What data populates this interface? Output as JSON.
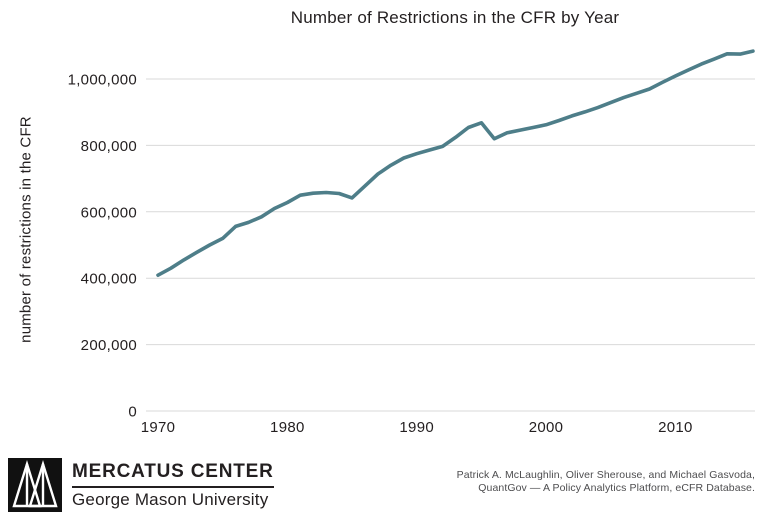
{
  "title": "Number of Restrictions in the CFR by Year",
  "chart_data": {
    "type": "line",
    "title": "Number of Restrictions in the CFR by Year",
    "xlabel": "",
    "ylabel": "number of restrictions in the CFR",
    "x": [
      1970,
      1971,
      1972,
      1973,
      1974,
      1975,
      1976,
      1977,
      1978,
      1979,
      1980,
      1981,
      1982,
      1983,
      1984,
      1985,
      1986,
      1987,
      1988,
      1989,
      1990,
      1991,
      1992,
      1993,
      1994,
      1995,
      1996,
      1997,
      1998,
      1999,
      2000,
      2001,
      2002,
      2003,
      2004,
      2005,
      2006,
      2007,
      2008,
      2009,
      2010,
      2011,
      2012,
      2013,
      2014,
      2015,
      2016
    ],
    "values": [
      409000,
      430000,
      455000,
      478000,
      500000,
      520000,
      556000,
      568000,
      585000,
      610000,
      628000,
      650000,
      656000,
      658000,
      655000,
      642000,
      678000,
      714000,
      740000,
      762000,
      775000,
      786000,
      797000,
      824000,
      854000,
      868000,
      820000,
      838000,
      846000,
      854000,
      862000,
      875000,
      889000,
      901000,
      914000,
      929000,
      944000,
      957000,
      970000,
      990000,
      1009000,
      1027000,
      1045000,
      1060000,
      1076000,
      1075000,
      1084000
    ],
    "xlim": [
      1970,
      2016
    ],
    "ylim": [
      0,
      1100000
    ],
    "xticks": [
      {
        "value": 1970,
        "label": "1970"
      },
      {
        "value": 1980,
        "label": "1980"
      },
      {
        "value": 1990,
        "label": "1990"
      },
      {
        "value": 2000,
        "label": "2000"
      },
      {
        "value": 2010,
        "label": "2010"
      }
    ],
    "yticks": [
      {
        "value": 0,
        "label": "0"
      },
      {
        "value": 200000,
        "label": "200,000"
      },
      {
        "value": 400000,
        "label": "400,000"
      },
      {
        "value": 600000,
        "label": "600,000"
      },
      {
        "value": 800000,
        "label": "800,000"
      },
      {
        "value": 1000000,
        "label": "1,000,000"
      }
    ],
    "grid": "horizontal",
    "legend": "none",
    "line_color": "#4e7e89",
    "grid_color": "#d9d9d9",
    "text_color": "#231f20"
  },
  "footer": {
    "logo_org": "MERCATUS CENTER",
    "logo_sub": "George Mason University",
    "logo_mark": "mercatus-m-triangles",
    "attribution_line1": "Patrick A. McLaughlin, Oliver Sherouse, and Michael Gasvoda,",
    "attribution_line2": "QuantGov — A Policy Analytics Platform, eCFR Database."
  }
}
